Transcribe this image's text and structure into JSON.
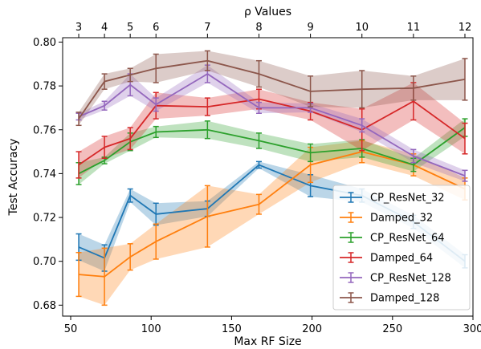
{
  "chart_data": {
    "type": "line",
    "xlabel": "Max RF Size",
    "ylabel": "Test Accuracy",
    "top_axis_label": "ρ Values",
    "xlim": [
      45,
      300
    ],
    "ylim": [
      0.675,
      0.802
    ],
    "x_ticks": [
      50,
      100,
      150,
      200,
      250,
      300
    ],
    "y_ticks": [
      0.68,
      0.7,
      0.72,
      0.74,
      0.76,
      0.78,
      0.8
    ],
    "x_tick_labels": [
      "50",
      "100",
      "150",
      "200",
      "250",
      "300"
    ],
    "y_tick_labels": [
      "0.68",
      "0.70",
      "0.72",
      "0.74",
      "0.76",
      "0.78",
      "0.80"
    ],
    "top_ticks": [
      {
        "x": 55,
        "label": "3"
      },
      {
        "x": 71,
        "label": "4"
      },
      {
        "x": 87,
        "label": "5"
      },
      {
        "x": 103,
        "label": "6"
      },
      {
        "x": 135,
        "label": "7"
      },
      {
        "x": 167,
        "label": "8"
      },
      {
        "x": 199,
        "label": "9"
      },
      {
        "x": 231,
        "label": "10"
      },
      {
        "x": 263,
        "label": "11"
      },
      {
        "x": 295,
        "label": "12"
      }
    ],
    "x": [
      55,
      71,
      87,
      103,
      135,
      167,
      199,
      231,
      263,
      295
    ],
    "legend_position": "lower-right",
    "grid": false,
    "series": [
      {
        "name": "CP_ResNet_32",
        "color": "#1f77b4",
        "values": [
          0.7065,
          0.7015,
          0.73,
          0.7215,
          0.724,
          0.744,
          0.7345,
          0.73,
          0.718,
          0.7
        ],
        "errors": [
          0.006,
          0.006,
          0.003,
          0.005,
          0.0035,
          0.0015,
          0.005,
          0.003,
          0.003,
          0.003
        ]
      },
      {
        "name": "Damped_32",
        "color": "#ff7f0e",
        "values": [
          0.694,
          0.693,
          0.702,
          0.709,
          0.7205,
          0.726,
          0.744,
          0.75,
          0.744,
          0.733
        ],
        "errors": [
          0.01,
          0.013,
          0.006,
          0.008,
          0.014,
          0.0045,
          0.008,
          0.005,
          0.005,
          0.005
        ]
      },
      {
        "name": "CP_ResNet_64",
        "color": "#2ca02c",
        "values": [
          0.74,
          0.746,
          0.7545,
          0.759,
          0.76,
          0.755,
          0.7495,
          0.7515,
          0.744,
          0.761
        ],
        "errors": [
          0.005,
          0.0015,
          0.004,
          0.0025,
          0.004,
          0.0035,
          0.004,
          0.004,
          0.003,
          0.004
        ]
      },
      {
        "name": "Damped_64",
        "color": "#d62728",
        "values": [
          0.744,
          0.752,
          0.756,
          0.771,
          0.7705,
          0.774,
          0.7685,
          0.76,
          0.773,
          0.756
        ],
        "errors": [
          0.006,
          0.005,
          0.005,
          0.006,
          0.004,
          0.0045,
          0.004,
          0.0095,
          0.0085,
          0.007
        ]
      },
      {
        "name": "CP_ResNet_128",
        "color": "#9467bd",
        "values": [
          0.766,
          0.771,
          0.7805,
          0.7715,
          0.7855,
          0.77,
          0.77,
          0.762,
          0.748,
          0.739
        ],
        "errors": [
          0.0015,
          0.002,
          0.005,
          0.003,
          0.004,
          0.0025,
          0.002,
          0.003,
          0.003,
          0.0025
        ]
      },
      {
        "name": "Damped_128",
        "color": "#8c564b",
        "values": [
          0.765,
          0.782,
          0.785,
          0.788,
          0.7915,
          0.7855,
          0.7775,
          0.7785,
          0.779,
          0.783
        ],
        "errors": [
          0.003,
          0.0035,
          0.003,
          0.0065,
          0.0045,
          0.006,
          0.007,
          0.0085,
          0.0055,
          0.0095
        ]
      }
    ]
  }
}
